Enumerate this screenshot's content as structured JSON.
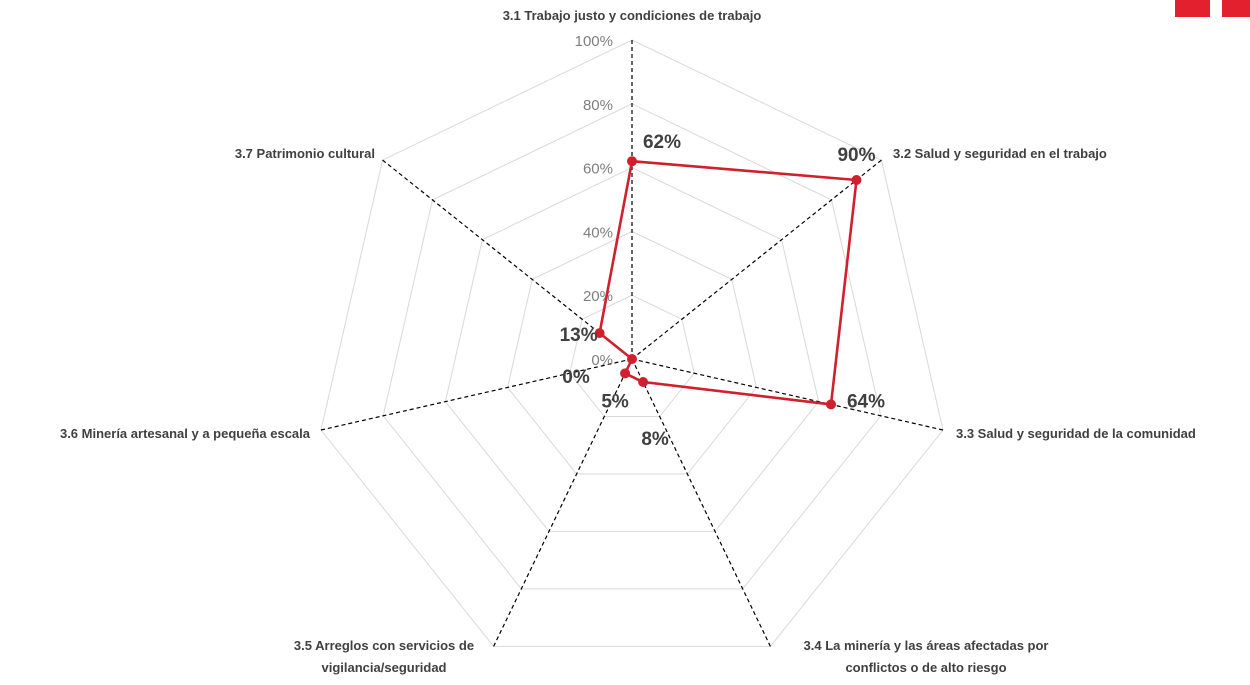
{
  "chart_data": {
    "type": "radar",
    "title": "",
    "categories": [
      [
        "3.1 Trabajo justo y condiciones de trabajo"
      ],
      [
        "3.2 Salud y seguridad en el trabajo"
      ],
      [
        "3.3 Salud y seguridad de la comunidad"
      ],
      [
        "3.4 La minería y las áreas afectadas por",
        "conflictos o de alto riesgo"
      ],
      [
        "3.5 Arreglos con servicios de",
        "vigilancia/seguridad"
      ],
      [
        "3.6 Minería artesanal y a pequeña escala"
      ],
      [
        "3.7 Patrimonio cultural"
      ]
    ],
    "values": [
      62,
      90,
      64,
      8,
      5,
      0,
      13
    ],
    "data_labels": [
      "62%",
      "90%",
      "64%",
      "8%",
      "5%",
      "0%",
      "13%"
    ],
    "r_ticks": [
      "0%",
      "20%",
      "40%",
      "60%",
      "80%",
      "100%"
    ],
    "r_tick_values": [
      0,
      20,
      40,
      60,
      80,
      100
    ],
    "rlim": [
      0,
      100
    ],
    "grid": true,
    "legend": "none",
    "series_color": "#d0202e",
    "grid_color": "#d9d9d9",
    "spoke_color": "#000000",
    "accent_color": "#e3202e"
  }
}
